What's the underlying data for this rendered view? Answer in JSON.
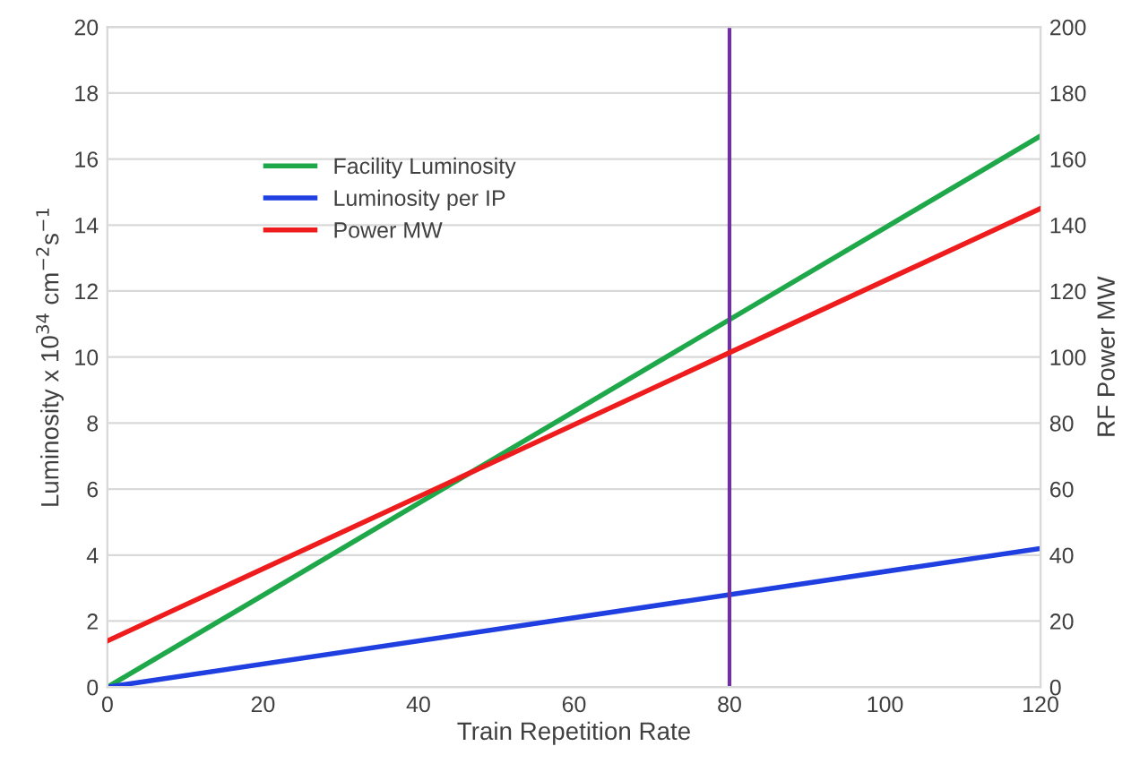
{
  "chart_data": {
    "type": "line",
    "xlabel": "Train Repetition Rate",
    "ylabel": "Luminosity x 10$^{34}$ cm$^{−2}$s$^{−1}$",
    "y2label": "RF Power MW",
    "x": [
      0,
      120
    ],
    "series": [
      {
        "name": "Facility Luminosity",
        "color": "#1fa84a",
        "values": [
          0,
          16.7
        ]
      },
      {
        "name": "Luminosity per IP",
        "color": "#1f3fe0",
        "values": [
          0,
          4.2
        ]
      },
      {
        "name": "Power MW",
        "color": "#ee1c1c",
        "values": [
          14,
          145
        ],
        "axis": "y2"
      }
    ],
    "xlim": [
      0,
      120
    ],
    "xticks": [
      0,
      20,
      40,
      60,
      80,
      100,
      120
    ],
    "ylim": [
      0,
      20
    ],
    "yticks": [
      0,
      2,
      4,
      6,
      8,
      10,
      12,
      14,
      16,
      18,
      20
    ],
    "y2lim": [
      0,
      200
    ],
    "y2ticks": [
      0,
      20,
      40,
      60,
      80,
      100,
      120,
      140,
      160,
      180,
      200
    ],
    "ref_lines": [
      {
        "axis": "x",
        "value": 80,
        "color": "#7030a0"
      }
    ],
    "grid": "y",
    "legend": "top left",
    "marker": "none",
    "line_style": "solid"
  }
}
